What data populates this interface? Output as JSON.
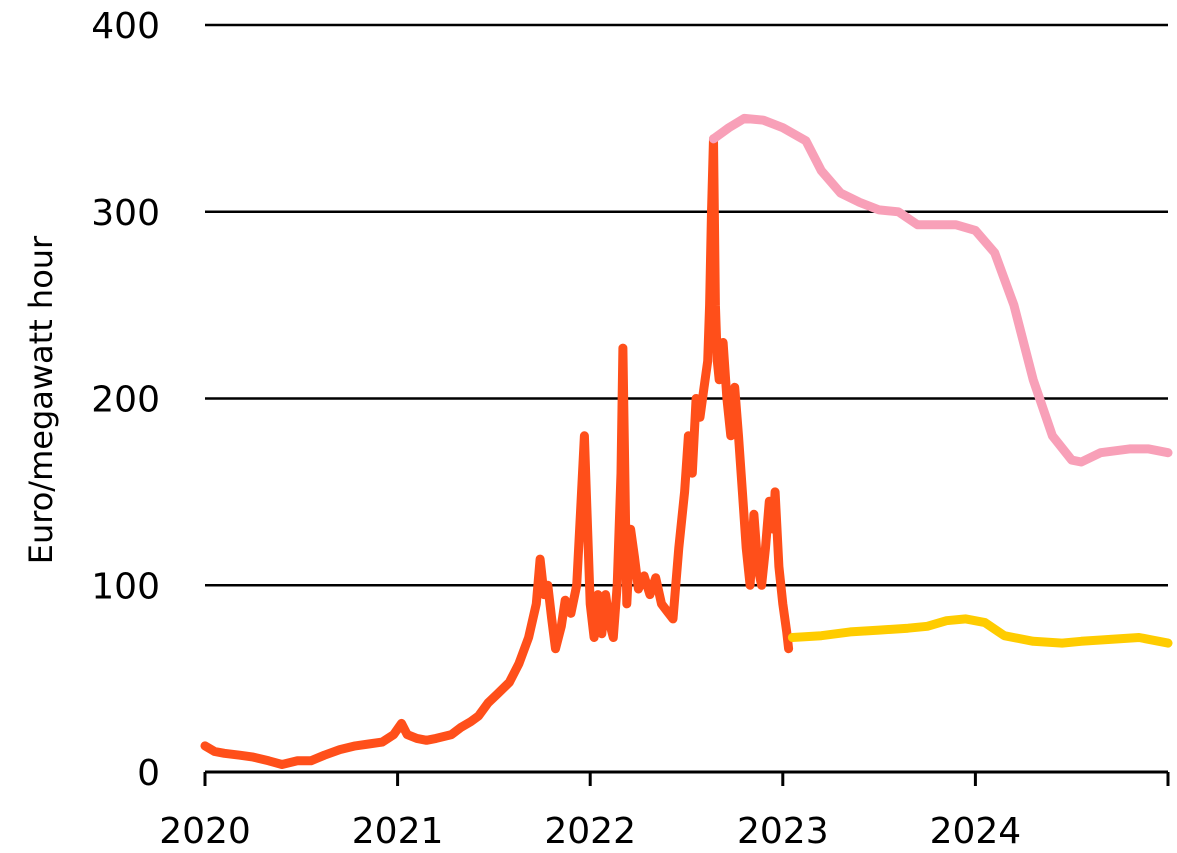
{
  "chart_data": {
    "type": "line",
    "title": "",
    "xlabel": "",
    "ylabel": "Euro/megawatt hour",
    "xlim": [
      2020.0,
      2025.0
    ],
    "ylim": [
      0,
      400
    ],
    "x_ticks": [
      "2020",
      "2021",
      "2022",
      "2023",
      "2024"
    ],
    "y_ticks": [
      "0",
      "100",
      "200",
      "300",
      "400"
    ],
    "grid": "horizontal",
    "legend": "none",
    "series": [
      {
        "color": "#FF4F1A",
        "points": [
          [
            2020.0,
            14
          ],
          [
            2020.05,
            11
          ],
          [
            2020.1,
            10
          ],
          [
            2020.18,
            9
          ],
          [
            2020.25,
            8
          ],
          [
            2020.33,
            6
          ],
          [
            2020.4,
            4
          ],
          [
            2020.48,
            6
          ],
          [
            2020.55,
            6
          ],
          [
            2020.62,
            9
          ],
          [
            2020.7,
            12
          ],
          [
            2020.78,
            14
          ],
          [
            2020.85,
            15
          ],
          [
            2020.92,
            16
          ],
          [
            2020.98,
            20
          ],
          [
            2021.02,
            26
          ],
          [
            2021.05,
            20
          ],
          [
            2021.1,
            18
          ],
          [
            2021.15,
            17
          ],
          [
            2021.2,
            18
          ],
          [
            2021.28,
            20
          ],
          [
            2021.33,
            24
          ],
          [
            2021.38,
            27
          ],
          [
            2021.42,
            30
          ],
          [
            2021.47,
            37
          ],
          [
            2021.52,
            42
          ],
          [
            2021.58,
            48
          ],
          [
            2021.63,
            58
          ],
          [
            2021.68,
            72
          ],
          [
            2021.72,
            90
          ],
          [
            2021.74,
            114
          ],
          [
            2021.76,
            95
          ],
          [
            2021.78,
            100
          ],
          [
            2021.8,
            82
          ],
          [
            2021.82,
            66
          ],
          [
            2021.85,
            78
          ],
          [
            2021.87,
            92
          ],
          [
            2021.9,
            85
          ],
          [
            2021.93,
            100
          ],
          [
            2021.95,
            140
          ],
          [
            2021.97,
            180
          ],
          [
            2021.98,
            150
          ],
          [
            2022.0,
            90
          ],
          [
            2022.02,
            72
          ],
          [
            2022.04,
            95
          ],
          [
            2022.06,
            74
          ],
          [
            2022.08,
            95
          ],
          [
            2022.1,
            80
          ],
          [
            2022.12,
            72
          ],
          [
            2022.14,
            100
          ],
          [
            2022.16,
            160
          ],
          [
            2022.17,
            227
          ],
          [
            2022.19,
            90
          ],
          [
            2022.21,
            130
          ],
          [
            2022.23,
            115
          ],
          [
            2022.25,
            98
          ],
          [
            2022.28,
            105
          ],
          [
            2022.31,
            95
          ],
          [
            2022.34,
            104
          ],
          [
            2022.37,
            90
          ],
          [
            2022.4,
            86
          ],
          [
            2022.43,
            82
          ],
          [
            2022.46,
            120
          ],
          [
            2022.49,
            150
          ],
          [
            2022.51,
            180
          ],
          [
            2022.53,
            160
          ],
          [
            2022.55,
            200
          ],
          [
            2022.57,
            190
          ],
          [
            2022.59,
            205
          ],
          [
            2022.61,
            220
          ],
          [
            2022.62,
            250
          ],
          [
            2022.63,
            300
          ],
          [
            2022.64,
            339
          ],
          [
            2022.65,
            250
          ],
          [
            2022.66,
            220
          ],
          [
            2022.67,
            210
          ],
          [
            2022.69,
            230
          ],
          [
            2022.71,
            200
          ],
          [
            2022.73,
            180
          ],
          [
            2022.75,
            206
          ],
          [
            2022.77,
            180
          ],
          [
            2022.79,
            150
          ],
          [
            2022.81,
            120
          ],
          [
            2022.83,
            100
          ],
          [
            2022.85,
            138
          ],
          [
            2022.87,
            110
          ],
          [
            2022.89,
            100
          ],
          [
            2022.91,
            120
          ],
          [
            2022.93,
            145
          ],
          [
            2022.95,
            130
          ],
          [
            2022.96,
            150
          ],
          [
            2022.98,
            110
          ],
          [
            2023.0,
            90
          ],
          [
            2023.02,
            75
          ],
          [
            2023.03,
            66
          ]
        ]
      },
      {
        "color": "#FFCC00",
        "points": [
          [
            2023.05,
            72
          ],
          [
            2023.2,
            73
          ],
          [
            2023.35,
            75
          ],
          [
            2023.5,
            76
          ],
          [
            2023.65,
            77
          ],
          [
            2023.75,
            78
          ],
          [
            2023.85,
            81
          ],
          [
            2023.95,
            82
          ],
          [
            2024.05,
            80
          ],
          [
            2024.15,
            73
          ],
          [
            2024.3,
            70
          ],
          [
            2024.45,
            69
          ],
          [
            2024.55,
            70
          ],
          [
            2024.7,
            71
          ],
          [
            2024.85,
            72
          ],
          [
            2025.0,
            69
          ]
        ]
      },
      {
        "color": "#F8A0B8",
        "points": [
          [
            2022.64,
            339
          ],
          [
            2022.72,
            345
          ],
          [
            2022.8,
            350
          ],
          [
            2022.9,
            349
          ],
          [
            2023.0,
            345
          ],
          [
            2023.12,
            338
          ],
          [
            2023.2,
            322
          ],
          [
            2023.3,
            310
          ],
          [
            2023.4,
            305
          ],
          [
            2023.5,
            301
          ],
          [
            2023.6,
            300
          ],
          [
            2023.7,
            293
          ],
          [
            2023.8,
            293
          ],
          [
            2023.9,
            293
          ],
          [
            2024.0,
            290
          ],
          [
            2024.1,
            278
          ],
          [
            2024.2,
            250
          ],
          [
            2024.3,
            210
          ],
          [
            2024.4,
            180
          ],
          [
            2024.5,
            167
          ],
          [
            2024.55,
            166
          ],
          [
            2024.65,
            171
          ],
          [
            2024.8,
            173
          ],
          [
            2024.9,
            173
          ],
          [
            2025.0,
            171
          ]
        ]
      }
    ]
  }
}
